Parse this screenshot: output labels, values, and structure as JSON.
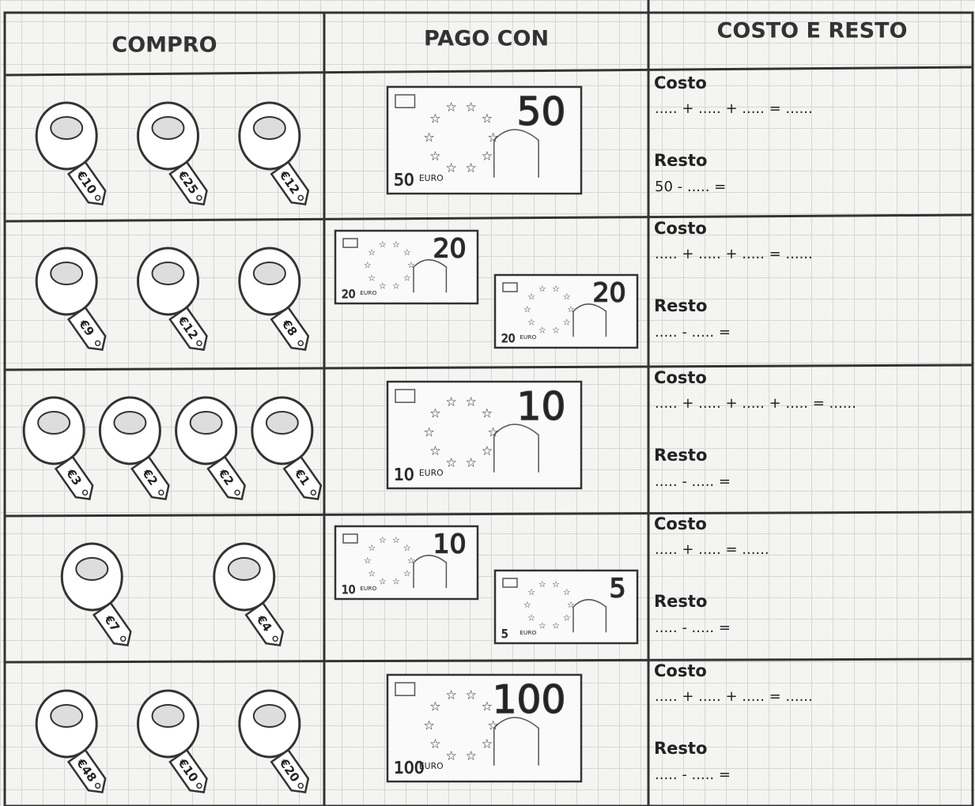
{
  "table": {
    "headers": [
      "COMPRO",
      "PAGO CON",
      "COSTO E RESTO"
    ],
    "rows": [
      {
        "tags": [
          "€10",
          "€25",
          "€12"
        ],
        "notes": [
          {
            "number": "50",
            "currency": "EURO"
          }
        ],
        "costo_label": "Costo",
        "costo": "..... + ..... + ..... = ......",
        "resto_label": "Resto",
        "resto": "50 - ..... ="
      },
      {
        "tags": [
          "€9",
          "€12",
          "€8"
        ],
        "notes": [
          {
            "number": "20",
            "currency": "EURO"
          },
          {
            "number": "20",
            "currency": "EURO"
          }
        ],
        "costo_label": "Costo",
        "costo": "..... + ..... + ..... = ......",
        "resto_label": "Resto",
        "resto": "..... - ..... ="
      },
      {
        "tags": [
          "€3",
          "€2",
          "€2",
          "€1"
        ],
        "notes": [
          {
            "number": "10",
            "currency": "EURO"
          }
        ],
        "costo_label": "Costo",
        "costo": "..... + ..... + ..... + ..... = ......",
        "resto_label": "Resto",
        "resto": "..... - ..... ="
      },
      {
        "tags": [
          "€7",
          "€4"
        ],
        "notes": [
          {
            "number": "10",
            "currency": "EURO"
          },
          {
            "number": "5",
            "currency": "EURO"
          }
        ],
        "costo_label": "Costo",
        "costo": "..... + ..... = ......",
        "resto_label": "Resto",
        "resto": "..... - ..... ="
      },
      {
        "tags": [
          "€48",
          "€10",
          "€20"
        ],
        "notes": [
          {
            "number": "100",
            "currency": "EURO"
          }
        ],
        "costo_label": "Costo",
        "costo": "..... + ..... + ..... = ......",
        "resto_label": "Resto",
        "resto": "..... - ..... ="
      }
    ]
  }
}
